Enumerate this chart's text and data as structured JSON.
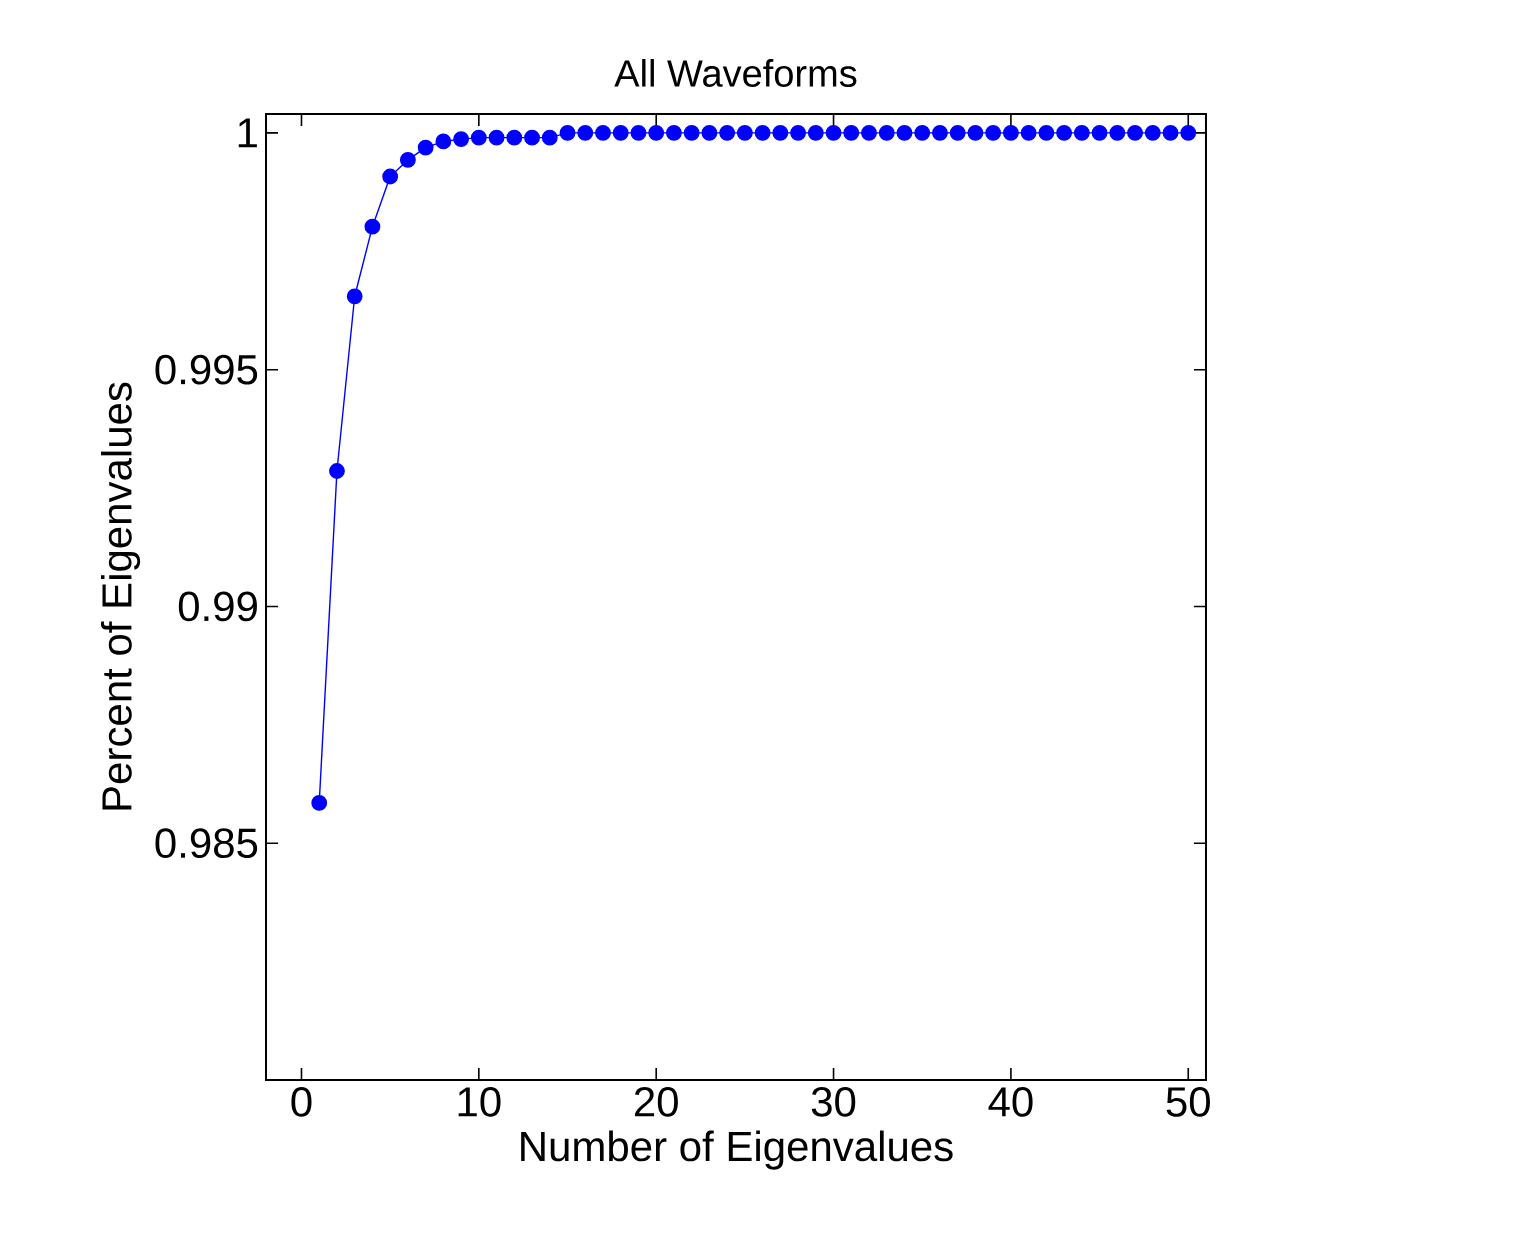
{
  "chart_data": {
    "type": "line",
    "title": "All Waveforms",
    "xlabel": "Number of Eigenvalues",
    "ylabel": "Percent of Eigenvalues",
    "x": [
      1,
      2,
      3,
      4,
      5,
      6,
      7,
      8,
      9,
      10,
      11,
      12,
      13,
      14,
      15,
      16,
      17,
      18,
      19,
      20,
      21,
      22,
      23,
      24,
      25,
      26,
      27,
      28,
      29,
      30,
      31,
      32,
      33,
      34,
      35,
      36,
      37,
      38,
      39,
      40,
      41,
      42,
      43,
      44,
      45,
      46,
      47,
      48,
      49,
      50
    ],
    "series": [
      {
        "color": "#0000ff",
        "values": [
          0.98585,
          0.99286,
          0.99655,
          0.99802,
          0.99908,
          0.99943,
          0.99969,
          0.99982,
          0.99987,
          0.9999,
          0.9999,
          0.9999,
          0.9999,
          0.9999,
          1.0,
          1.0,
          1.0,
          1.0,
          1.0,
          1.0,
          1.0,
          1.0,
          1.0,
          1.0,
          1.0,
          1.0,
          1.0,
          1.0,
          1.0,
          1.0,
          1.0,
          1.0,
          1.0,
          1.0,
          1.0,
          1.0,
          1.0,
          1.0,
          1.0,
          1.0,
          1.0,
          1.0,
          1.0,
          1.0,
          1.0,
          1.0,
          1.0,
          1.0,
          1.0,
          1.0
        ]
      }
    ],
    "xlim": [
      -2,
      51
    ],
    "ylim": [
      0.98,
      1.0004
    ],
    "xticks": [
      0,
      10,
      20,
      30,
      40,
      50
    ],
    "yticks": [
      0.985,
      0.99,
      0.995,
      1
    ],
    "marker": "circle",
    "line_style": "solid"
  }
}
